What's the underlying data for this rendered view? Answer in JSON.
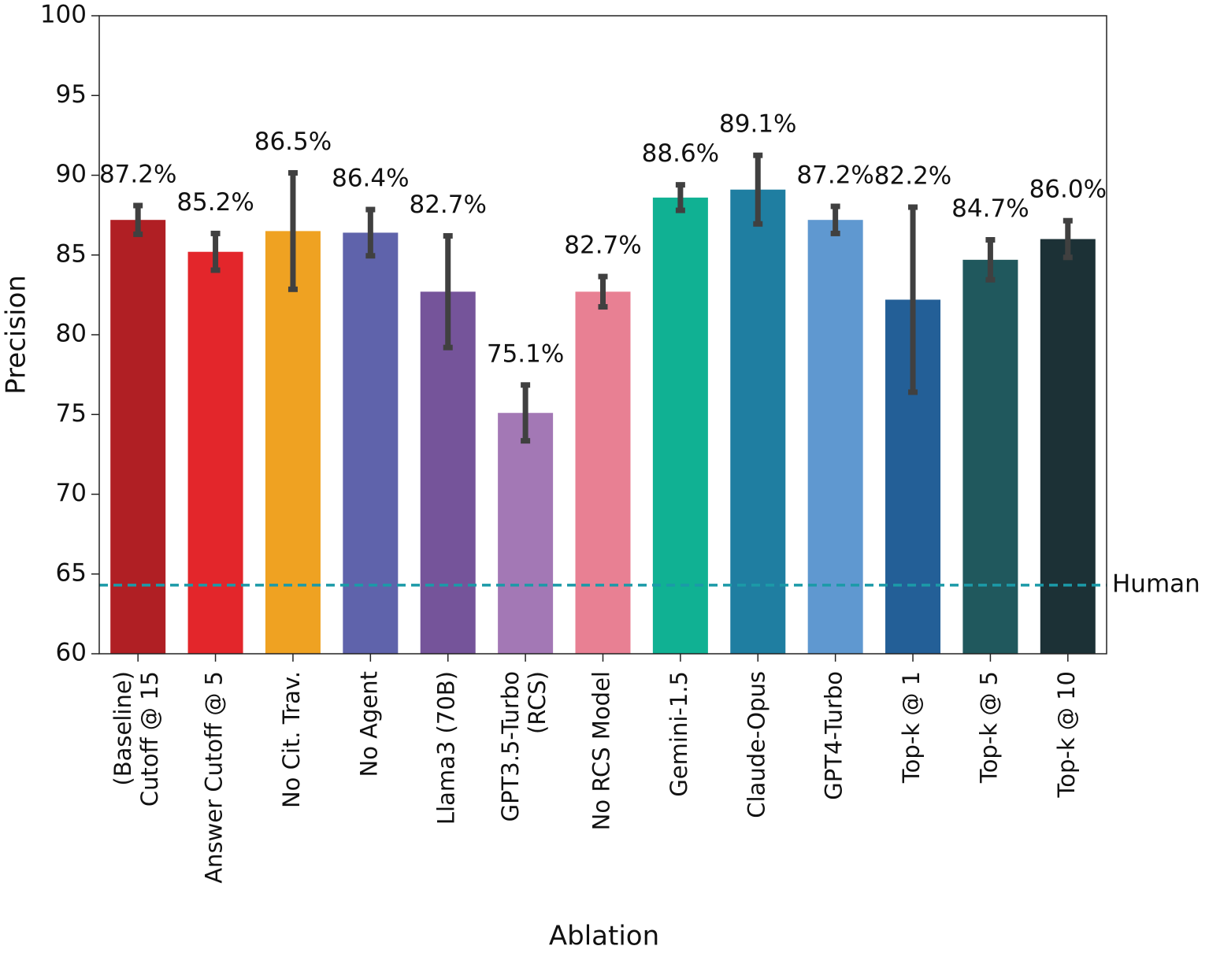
{
  "chart_data": {
    "type": "bar",
    "xlabel": "Ablation",
    "ylabel": "Precision",
    "categories": [
      "(Baseline)\nCutoff @ 15",
      "Answer Cutoff @ 5",
      "No Cit. Trav.",
      "No Agent",
      "Llama3 (70B)",
      "GPT3.5-Turbo\n(RCS)",
      "No RCS Model",
      "Gemini-1.5",
      "Claude-Opus",
      "GPT4-Turbo",
      "Top-k @ 1",
      "Top-k @ 5",
      "Top-k @ 10"
    ],
    "values": [
      87.2,
      85.2,
      86.5,
      86.4,
      82.7,
      75.1,
      82.7,
      88.6,
      89.1,
      87.2,
      82.2,
      84.7,
      86.0
    ],
    "value_labels": [
      "87.2%",
      "85.2%",
      "86.5%",
      "86.4%",
      "82.7%",
      "75.1%",
      "82.7%",
      "88.6%",
      "89.1%",
      "87.2%",
      "82.2%",
      "84.7%",
      "86.0%"
    ],
    "errors": [
      0.9,
      1.15,
      3.65,
      1.45,
      3.5,
      1.75,
      0.95,
      0.8,
      2.15,
      0.85,
      5.8,
      1.25,
      1.15
    ],
    "colors": [
      "#b01f24",
      "#e3262b",
      "#efa222",
      "#5f63ab",
      "#75549a",
      "#a378b5",
      "#e88093",
      "#10b193",
      "#1f7ea1",
      "#5f98d0",
      "#235f97",
      "#20585d",
      "#1c3136"
    ],
    "reference_line": {
      "label": "Human",
      "value": 64.3,
      "color": "#1b9aa8"
    },
    "ylim": [
      60,
      100
    ],
    "yticks": [
      60,
      65,
      70,
      75,
      80,
      85,
      90,
      95,
      100
    ]
  }
}
